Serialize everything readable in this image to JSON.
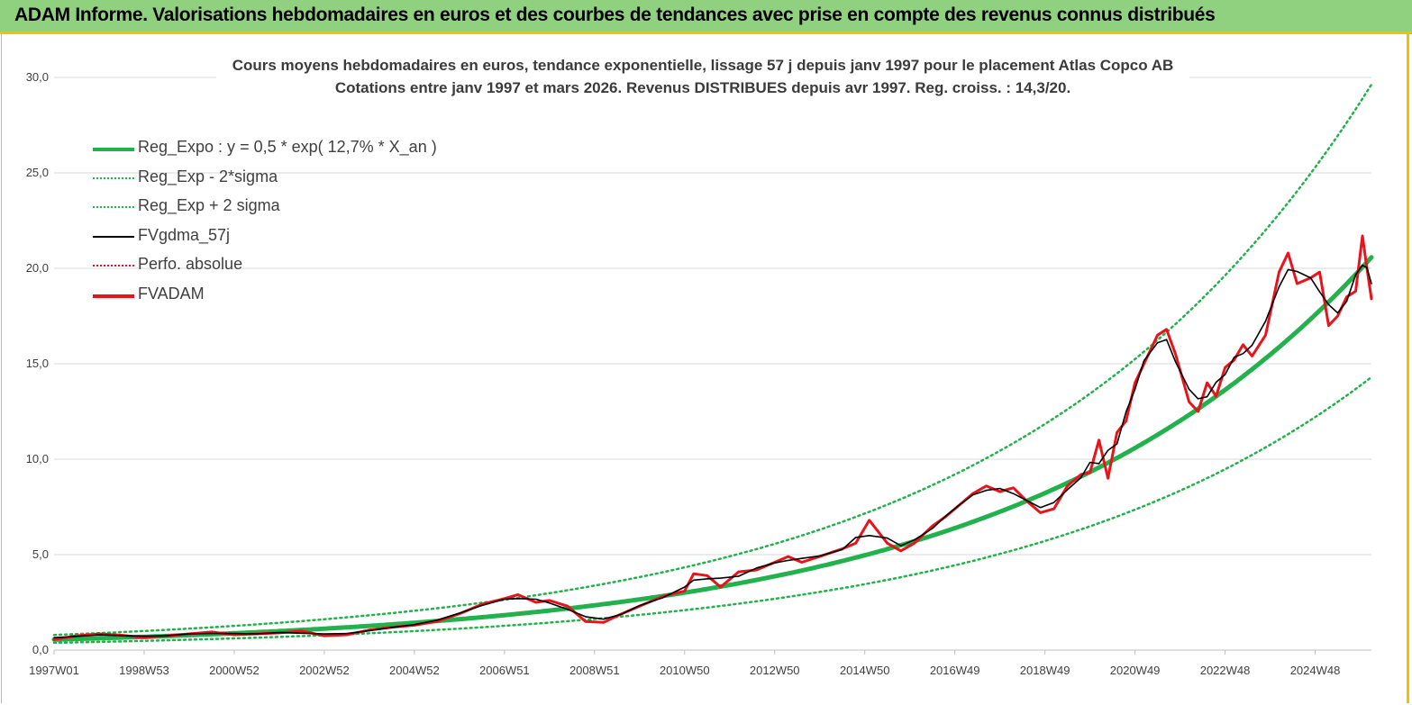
{
  "header": {
    "title": "ADAM Informe. Valorisations hebdomadaires en euros et des courbes de tendances avec prise en compte des revenus connus distribués"
  },
  "chart_data": {
    "type": "line",
    "title": "Cours moyens hebdomadaires en euros, tendance exponentielle, lissage 57 j depuis janv 1997 pour le placement Atlas Copco AB",
    "subtitle": "Cotations entre janv 1997 et mars 2026. Revenus DISTRIBUES depuis avr 1997. Reg. croiss. : 14,3/20.",
    "xlabel": "",
    "ylabel": "",
    "ylim": [
      0,
      30
    ],
    "xlim": [
      1997.0,
      2026.25
    ],
    "y_ticks": [
      "0,0",
      "5,0",
      "10,0",
      "15,0",
      "20,0",
      "25,0",
      "30,0"
    ],
    "x_ticks": [
      {
        "label": "1997W01",
        "x": 1997.0
      },
      {
        "label": "1998W53",
        "x": 1999.0
      },
      {
        "label": "2000W52",
        "x": 2001.0
      },
      {
        "label": "2002W52",
        "x": 2003.0
      },
      {
        "label": "2004W52",
        "x": 2005.0
      },
      {
        "label": "2006W51",
        "x": 2007.0
      },
      {
        "label": "2008W51",
        "x": 2009.0
      },
      {
        "label": "2010W50",
        "x": 2011.0
      },
      {
        "label": "2012W50",
        "x": 2013.0
      },
      {
        "label": "2014W50",
        "x": 2015.0
      },
      {
        "label": "2016W49",
        "x": 2017.0
      },
      {
        "label": "2018W49",
        "x": 2019.0
      },
      {
        "label": "2020W49",
        "x": 2021.0
      },
      {
        "label": "2022W48",
        "x": 2023.0
      },
      {
        "label": "2024W48",
        "x": 2025.0
      }
    ],
    "grid": true,
    "legend_position": "top-left",
    "regression": {
      "a": 0.5,
      "rate": 0.127,
      "sigma_factor_low": 0.695,
      "sigma_factor_high": 1.44
    },
    "series": [
      {
        "name": "Reg_Expo : y = 0,5 * exp( 12,7% *  X_an )",
        "color": "#22b14c",
        "style": "solid-thick"
      },
      {
        "name": "Reg_Exp - 2*sigma",
        "color": "#22b14c",
        "style": "dotted"
      },
      {
        "name": "Reg_Exp + 2 sigma",
        "color": "#22b14c",
        "style": "dotted"
      },
      {
        "name": "FVgdma_57j",
        "color": "#000000",
        "style": "solid"
      },
      {
        "name": "Perfo. absolue",
        "color": "#e8141c",
        "style": "dotted"
      },
      {
        "name": "FVADAM",
        "color": "#e8141c",
        "style": "solid-thick",
        "points": [
          [
            1997.0,
            0.55
          ],
          [
            1997.5,
            0.75
          ],
          [
            1998.0,
            0.85
          ],
          [
            1998.5,
            0.78
          ],
          [
            1999.0,
            0.65
          ],
          [
            1999.5,
            0.75
          ],
          [
            2000.0,
            0.85
          ],
          [
            2000.5,
            0.95
          ],
          [
            2001.0,
            0.8
          ],
          [
            2001.5,
            0.85
          ],
          [
            2002.0,
            0.9
          ],
          [
            2002.5,
            1.0
          ],
          [
            2003.0,
            0.75
          ],
          [
            2003.5,
            0.8
          ],
          [
            2004.0,
            1.05
          ],
          [
            2004.5,
            1.2
          ],
          [
            2005.0,
            1.3
          ],
          [
            2005.5,
            1.5
          ],
          [
            2006.0,
            1.9
          ],
          [
            2006.5,
            2.4
          ],
          [
            2007.0,
            2.7
          ],
          [
            2007.3,
            2.9
          ],
          [
            2007.7,
            2.5
          ],
          [
            2008.0,
            2.6
          ],
          [
            2008.4,
            2.3
          ],
          [
            2008.8,
            1.5
          ],
          [
            2009.2,
            1.45
          ],
          [
            2009.6,
            1.9
          ],
          [
            2010.0,
            2.3
          ],
          [
            2010.5,
            2.8
          ],
          [
            2011.0,
            3.1
          ],
          [
            2011.2,
            4.0
          ],
          [
            2011.5,
            3.9
          ],
          [
            2011.8,
            3.3
          ],
          [
            2012.2,
            4.1
          ],
          [
            2012.6,
            4.2
          ],
          [
            2013.0,
            4.6
          ],
          [
            2013.3,
            4.9
          ],
          [
            2013.6,
            4.6
          ],
          [
            2014.0,
            4.9
          ],
          [
            2014.5,
            5.3
          ],
          [
            2014.8,
            5.6
          ],
          [
            2015.1,
            6.8
          ],
          [
            2015.5,
            5.6
          ],
          [
            2015.8,
            5.2
          ],
          [
            2016.1,
            5.6
          ],
          [
            2016.5,
            6.5
          ],
          [
            2016.8,
            7.0
          ],
          [
            2017.1,
            7.6
          ],
          [
            2017.4,
            8.2
          ],
          [
            2017.7,
            8.6
          ],
          [
            2018.0,
            8.3
          ],
          [
            2018.3,
            8.5
          ],
          [
            2018.6,
            7.8
          ],
          [
            2018.9,
            7.2
          ],
          [
            2019.2,
            7.4
          ],
          [
            2019.5,
            8.6
          ],
          [
            2019.8,
            9.2
          ],
          [
            2020.0,
            9.3
          ],
          [
            2020.2,
            11.0
          ],
          [
            2020.4,
            9.0
          ],
          [
            2020.6,
            11.4
          ],
          [
            2020.8,
            12.0
          ],
          [
            2021.0,
            14.0
          ],
          [
            2021.2,
            15.0
          ],
          [
            2021.5,
            16.5
          ],
          [
            2021.7,
            16.8
          ],
          [
            2021.9,
            15.5
          ],
          [
            2022.2,
            13.0
          ],
          [
            2022.4,
            12.5
          ],
          [
            2022.6,
            14.0
          ],
          [
            2022.8,
            13.3
          ],
          [
            2023.0,
            14.8
          ],
          [
            2023.2,
            15.2
          ],
          [
            2023.4,
            16.0
          ],
          [
            2023.6,
            15.4
          ],
          [
            2023.9,
            16.5
          ],
          [
            2024.2,
            19.8
          ],
          [
            2024.4,
            20.8
          ],
          [
            2024.6,
            19.2
          ],
          [
            2024.9,
            19.5
          ],
          [
            2025.1,
            19.8
          ],
          [
            2025.3,
            17.0
          ],
          [
            2025.5,
            17.5
          ],
          [
            2025.7,
            18.5
          ],
          [
            2025.9,
            18.8
          ],
          [
            2026.05,
            21.7
          ],
          [
            2026.15,
            20.0
          ],
          [
            2026.25,
            18.4
          ]
        ]
      }
    ]
  }
}
